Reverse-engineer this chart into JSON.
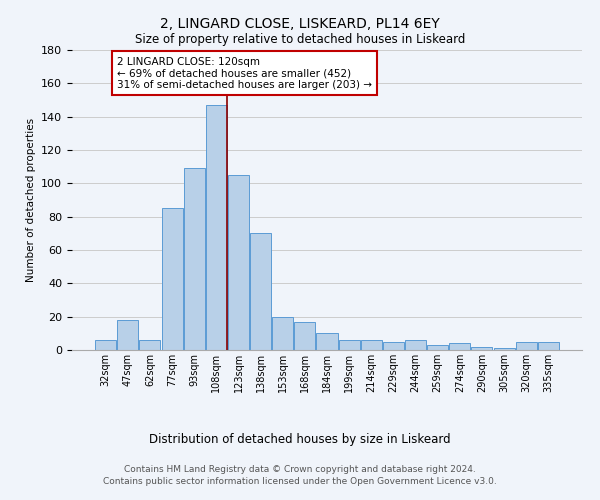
{
  "title1": "2, LINGARD CLOSE, LISKEARD, PL14 6EY",
  "title2": "Size of property relative to detached houses in Liskeard",
  "xlabel": "Distribution of detached houses by size in Liskeard",
  "ylabel": "Number of detached properties",
  "categories": [
    "32sqm",
    "47sqm",
    "62sqm",
    "77sqm",
    "93sqm",
    "108sqm",
    "123sqm",
    "138sqm",
    "153sqm",
    "168sqm",
    "184sqm",
    "199sqm",
    "214sqm",
    "229sqm",
    "244sqm",
    "259sqm",
    "274sqm",
    "290sqm",
    "305sqm",
    "320sqm",
    "335sqm"
  ],
  "values": [
    6,
    18,
    6,
    85,
    109,
    147,
    105,
    70,
    20,
    17,
    10,
    6,
    6,
    5,
    6,
    3,
    4,
    2,
    1,
    5,
    5
  ],
  "bar_color": "#b8d0e8",
  "bar_edge_color": "#5b9bd5",
  "vline_x": 5.5,
  "vline_color": "#8b0000",
  "annotation_title": "2 LINGARD CLOSE: 120sqm",
  "annotation_line1": "← 69% of detached houses are smaller (452)",
  "annotation_line2": "31% of semi-detached houses are larger (203) →",
  "annotation_box_color": "#ffffff",
  "annotation_box_edge": "#c00000",
  "ylim": [
    0,
    180
  ],
  "yticks": [
    0,
    20,
    40,
    60,
    80,
    100,
    120,
    140,
    160,
    180
  ],
  "background_color": "#f0f4fa",
  "grid_color": "#cccccc",
  "footer1": "Contains HM Land Registry data © Crown copyright and database right 2024.",
  "footer2": "Contains public sector information licensed under the Open Government Licence v3.0."
}
